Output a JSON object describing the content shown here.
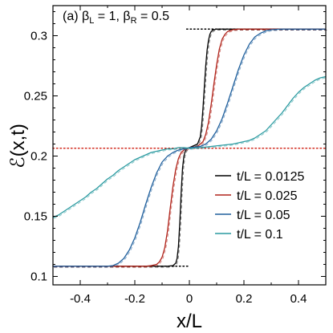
{
  "chart_data": {
    "type": "line",
    "title": "(a) β",
    "title_sub_L": "L",
    "title_mid": " = 1, β",
    "title_sub_R": "R",
    "title_end": " = 0.5",
    "xlabel": "x/L",
    "ylabel": "ℰ(x,t)",
    "xlim": [
      -0.5,
      0.5
    ],
    "ylim": [
      0.093,
      0.325
    ],
    "xticks": [
      -0.4,
      -0.2,
      0,
      0.2,
      0.4
    ],
    "xtick_labels": [
      "-0.4",
      "-0.2",
      "0",
      "0.2",
      "0.4"
    ],
    "yticks": [
      0.1,
      0.15,
      0.2,
      0.25,
      0.3
    ],
    "ytick_labels": [
      "0.1",
      "0.15",
      "0.2",
      "0.25",
      "0.3"
    ],
    "legend_position": "right-middle",
    "reference_lines": [
      {
        "y": 0.3055,
        "x_from": -0.01,
        "x_to": 0.5,
        "color": "#000000",
        "style": "dotted"
      },
      {
        "y": 0.1085,
        "x_from": -0.5,
        "x_to": 0.0,
        "color": "#000000",
        "style": "dotted"
      },
      {
        "y": 0.2065,
        "x_from": -0.5,
        "x_to": 0.5,
        "color": "#d22a1e",
        "style": "dotted"
      }
    ],
    "series": [
      {
        "name": "t/L = 0.0125",
        "color": "#000000",
        "x": [
          -0.5,
          -0.08,
          -0.06,
          -0.05,
          -0.045,
          -0.04,
          -0.035,
          -0.03,
          -0.025,
          -0.02,
          -0.015,
          -0.01,
          0.0,
          0.01,
          0.03,
          0.04,
          0.045,
          0.05,
          0.055,
          0.06,
          0.065,
          0.07,
          0.075,
          0.08,
          0.085,
          0.09,
          0.1,
          0.12,
          0.5
        ],
        "y": [
          0.1085,
          0.1085,
          0.109,
          0.111,
          0.115,
          0.125,
          0.145,
          0.17,
          0.19,
          0.2,
          0.204,
          0.206,
          0.207,
          0.208,
          0.21,
          0.216,
          0.225,
          0.24,
          0.258,
          0.275,
          0.288,
          0.296,
          0.301,
          0.3035,
          0.3045,
          0.305,
          0.3055,
          0.3055,
          0.3055
        ]
      },
      {
        "name": "t/L = 0.025",
        "color": "#b0231a",
        "x": [
          -0.5,
          -0.16,
          -0.14,
          -0.12,
          -0.11,
          -0.1,
          -0.09,
          -0.08,
          -0.07,
          -0.06,
          -0.05,
          -0.04,
          -0.03,
          -0.02,
          0.0,
          0.03,
          0.05,
          0.06,
          0.07,
          0.08,
          0.09,
          0.1,
          0.11,
          0.12,
          0.13,
          0.14,
          0.16,
          0.18,
          0.5
        ],
        "y": [
          0.1085,
          0.1085,
          0.109,
          0.11,
          0.112,
          0.116,
          0.124,
          0.138,
          0.157,
          0.175,
          0.189,
          0.198,
          0.203,
          0.205,
          0.207,
          0.208,
          0.212,
          0.218,
          0.228,
          0.243,
          0.26,
          0.276,
          0.289,
          0.297,
          0.301,
          0.3035,
          0.305,
          0.3055,
          0.3055
        ]
      },
      {
        "name": "t/L = 0.05",
        "color": "#1f5f9c",
        "x": [
          -0.5,
          -0.3,
          -0.28,
          -0.26,
          -0.24,
          -0.22,
          -0.2,
          -0.18,
          -0.16,
          -0.14,
          -0.12,
          -0.1,
          -0.08,
          -0.06,
          -0.04,
          -0.02,
          0.0,
          0.04,
          0.06,
          0.08,
          0.1,
          0.12,
          0.14,
          0.16,
          0.18,
          0.2,
          0.22,
          0.24,
          0.26,
          0.28,
          0.3,
          0.34,
          0.5
        ],
        "y": [
          0.1085,
          0.1085,
          0.109,
          0.111,
          0.115,
          0.122,
          0.132,
          0.145,
          0.16,
          0.174,
          0.186,
          0.195,
          0.2,
          0.203,
          0.205,
          0.206,
          0.207,
          0.208,
          0.21,
          0.214,
          0.221,
          0.231,
          0.244,
          0.258,
          0.272,
          0.284,
          0.293,
          0.299,
          0.302,
          0.304,
          0.305,
          0.3055,
          0.3055
        ]
      },
      {
        "name": "t/L = 0.1",
        "color": "#2a9aa0",
        "x": [
          -0.5,
          -0.48,
          -0.46,
          -0.44,
          -0.42,
          -0.4,
          -0.38,
          -0.36,
          -0.34,
          -0.32,
          -0.3,
          -0.28,
          -0.26,
          -0.24,
          -0.22,
          -0.2,
          -0.18,
          -0.16,
          -0.14,
          -0.12,
          -0.1,
          -0.08,
          -0.06,
          -0.04,
          -0.02,
          0.0,
          0.04,
          0.08,
          0.12,
          0.16,
          0.2,
          0.22,
          0.24,
          0.26,
          0.28,
          0.3,
          0.32,
          0.34,
          0.36,
          0.38,
          0.4,
          0.42,
          0.44,
          0.46,
          0.48,
          0.5
        ],
        "y": [
          0.149,
          0.151,
          0.154,
          0.157,
          0.16,
          0.163,
          0.166,
          0.17,
          0.173,
          0.177,
          0.181,
          0.184,
          0.188,
          0.191,
          0.194,
          0.197,
          0.199,
          0.201,
          0.203,
          0.204,
          0.205,
          0.206,
          0.206,
          0.207,
          0.207,
          0.2065,
          0.207,
          0.208,
          0.209,
          0.21,
          0.212,
          0.213,
          0.215,
          0.218,
          0.221,
          0.226,
          0.231,
          0.236,
          0.242,
          0.248,
          0.253,
          0.257,
          0.26,
          0.263,
          0.265,
          0.266
        ]
      }
    ]
  }
}
